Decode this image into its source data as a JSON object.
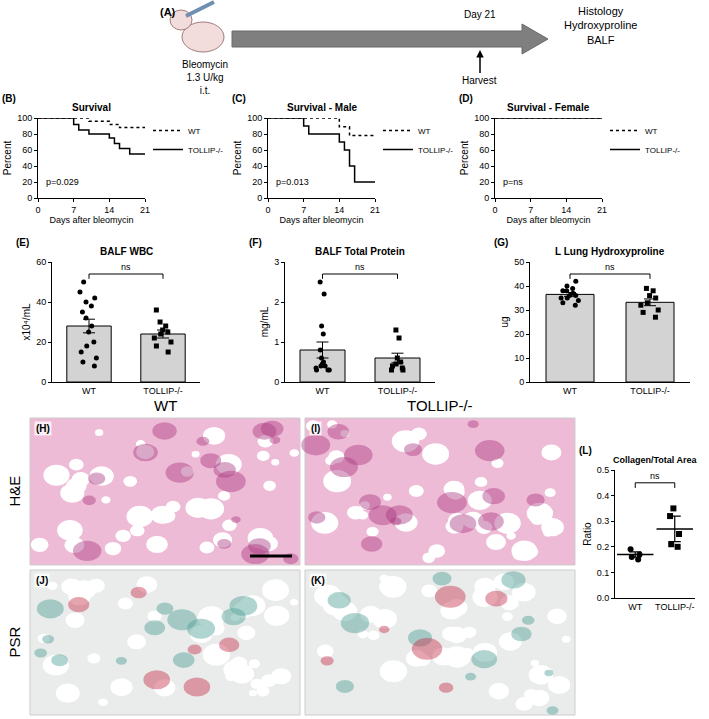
{
  "schematic": {
    "label": "(A)",
    "treatment": [
      "Bleomycin",
      "1.3 U/kg",
      "i.t."
    ],
    "timepoint": "Day 21",
    "event": "Harvest",
    "readouts": [
      "Histology",
      "Hydroxyproline",
      "BALF"
    ]
  },
  "histology": {
    "columns": [
      "WT",
      "TOLLIP-/-"
    ],
    "rows": [
      "H&E",
      "PSR"
    ],
    "panels": [
      "(H)",
      "(I)",
      "(J)",
      "(K)"
    ]
  },
  "chart_data": [
    {
      "panel": "(B)",
      "type": "step",
      "title": "Survival",
      "x_label": "Days after bleomycin",
      "y_label": "Percent",
      "xlim": [
        0,
        21
      ],
      "xticks": [
        0,
        7,
        14,
        21
      ],
      "ylim": [
        0,
        100
      ],
      "yticks": [
        0,
        20,
        40,
        60,
        80,
        100
      ],
      "grid": false,
      "legend": "right",
      "annotation": "p=0.029",
      "series": [
        {
          "name": "WT",
          "color": "#000000",
          "line_style": "dotted",
          "x": [
            0,
            10,
            14,
            16,
            21
          ],
          "values": [
            100,
            96,
            92,
            88,
            88
          ]
        },
        {
          "name": "TOLLIP-/-",
          "color": "#000000",
          "line_style": "solid",
          "x": [
            0,
            7,
            8,
            10,
            14,
            15,
            16,
            18,
            21
          ],
          "values": [
            100,
            92,
            85,
            80,
            75,
            68,
            62,
            55,
            55
          ]
        }
      ]
    },
    {
      "panel": "(C)",
      "type": "step",
      "title": "Survival - Male",
      "x_label": "Days after bleomycin",
      "y_label": "Percent",
      "xlim": [
        0,
        21
      ],
      "xticks": [
        0,
        7,
        14,
        21
      ],
      "ylim": [
        0,
        100
      ],
      "yticks": [
        0,
        20,
        40,
        60,
        80,
        100
      ],
      "grid": false,
      "legend": "right",
      "annotation": "p=0.013",
      "series": [
        {
          "name": "WT",
          "color": "#000000",
          "line_style": "dotted",
          "x": [
            0,
            14,
            16,
            21
          ],
          "values": [
            100,
            89,
            78,
            78
          ]
        },
        {
          "name": "TOLLIP-/-",
          "color": "#000000",
          "line_style": "solid",
          "x": [
            0,
            7,
            8,
            14,
            15,
            16,
            17,
            21
          ],
          "values": [
            100,
            90,
            80,
            70,
            60,
            40,
            20,
            20
          ]
        }
      ]
    },
    {
      "panel": "(D)",
      "type": "step",
      "title": "Survival - Female",
      "x_label": "Days after bleomycin",
      "y_label": "Percent",
      "xlim": [
        0,
        21
      ],
      "xticks": [
        0,
        7,
        14,
        21
      ],
      "ylim": [
        0,
        100
      ],
      "yticks": [
        0,
        20,
        40,
        60,
        80,
        100
      ],
      "grid": false,
      "legend": "right",
      "annotation": "p=ns",
      "series": [
        {
          "name": "WT",
          "color": "#000000",
          "line_style": "dotted",
          "x": [
            0,
            21
          ],
          "values": [
            100,
            100
          ]
        },
        {
          "name": "TOLLIP-/-",
          "color": "#000000",
          "line_style": "solid",
          "x": [
            0,
            21
          ],
          "values": [
            100,
            100
          ]
        }
      ]
    },
    {
      "panel": "(E)",
      "type": "bar",
      "title": "BALF WBC",
      "y_label": "x10⁴/mL",
      "categories": [
        "WT",
        "TOLLIP-/-"
      ],
      "values": [
        28,
        24
      ],
      "errors": [
        3.4,
        2.0
      ],
      "color": "#d3d3d3",
      "ylim": [
        0,
        60
      ],
      "yticks": [
        0,
        20,
        40,
        60
      ],
      "grid": false,
      "significance": "ns",
      "points": [
        {
          "marker": "circle",
          "values": [
            50,
            45,
            42,
            40,
            38,
            35,
            32,
            28,
            25,
            20,
            18,
            15,
            12,
            10,
            8
          ]
        },
        {
          "marker": "square",
          "values": [
            36,
            30,
            28,
            26,
            25,
            24,
            22,
            20,
            18,
            15
          ]
        }
      ]
    },
    {
      "panel": "(F)",
      "type": "bar",
      "title": "BALF Total Protein",
      "y_label": "mg/mL",
      "categories": [
        "WT",
        "TOLLIP-/-"
      ],
      "values": [
        0.8,
        0.6
      ],
      "errors": [
        0.2,
        0.12
      ],
      "color": "#d3d3d3",
      "ylim": [
        0,
        3
      ],
      "yticks": [
        0,
        1,
        2,
        3
      ],
      "grid": false,
      "significance": "ns",
      "points": [
        {
          "marker": "circle",
          "values": [
            2.5,
            2.2,
            1.4,
            1.2,
            0.8,
            0.6,
            0.5,
            0.45,
            0.4,
            0.4,
            0.35,
            0.3,
            0.3,
            0.3
          ]
        },
        {
          "marker": "square",
          "values": [
            1.3,
            1.1,
            0.6,
            0.5,
            0.45,
            0.4,
            0.35,
            0.3,
            0.3
          ]
        }
      ]
    },
    {
      "panel": "(G)",
      "type": "bar",
      "title": "L Lung Hydroxyproline",
      "y_label": "ug",
      "categories": [
        "WT",
        "TOLLIP-/-"
      ],
      "values": [
        36.5,
        33.2
      ],
      "errors": [
        0.8,
        1.4
      ],
      "color": "#d3d3d3",
      "ylim": [
        0,
        50
      ],
      "yticks": [
        0,
        10,
        20,
        30,
        40,
        50
      ],
      "grid": false,
      "significance": "ns",
      "points": [
        {
          "marker": "circle",
          "values": [
            42,
            40,
            39,
            38,
            38,
            37,
            36,
            36,
            35,
            35,
            34,
            33,
            32
          ]
        },
        {
          "marker": "square",
          "values": [
            39,
            38,
            36,
            35,
            33,
            32,
            30,
            29,
            27
          ]
        }
      ]
    },
    {
      "panel": "(L)",
      "type": "scatter",
      "title": "Collagen/Total Area",
      "y_label": "Ratio",
      "categories": [
        "WT",
        "TOLLIP-/-"
      ],
      "means": [
        0.17,
        0.27
      ],
      "errors": [
        0.01,
        0.05
      ],
      "color": "#000000",
      "ylim": [
        0,
        0.5
      ],
      "yticks": [
        {
          "value": 0,
          "label": "0.0"
        },
        0.1,
        0.2,
        0.3,
        0.4,
        0.5
      ],
      "grid": false,
      "significance": "ns",
      "points": [
        {
          "marker": "circle",
          "values": [
            0.19,
            0.17,
            0.16,
            0.15
          ]
        },
        {
          "marker": "square",
          "values": [
            0.35,
            0.32,
            0.25,
            0.21,
            0.2
          ]
        }
      ]
    }
  ]
}
